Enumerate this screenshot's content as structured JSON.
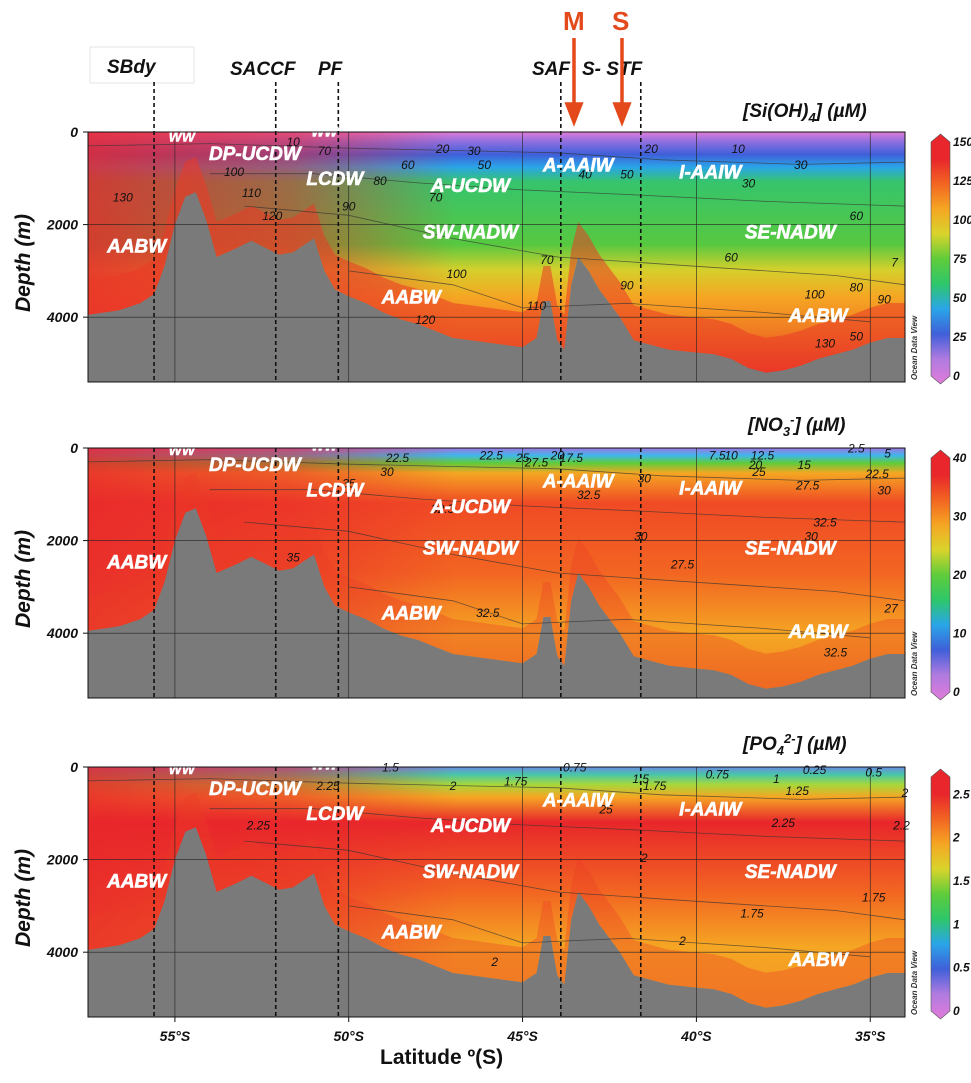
{
  "figure": {
    "front_labels": [
      {
        "text": "SBdy",
        "boxed": true
      },
      {
        "text": "SACCF",
        "boxed": false
      },
      {
        "text": "PF",
        "boxed": false
      },
      {
        "text": "SAF",
        "boxed": false
      },
      {
        "text": "S- STF",
        "boxed": false
      }
    ],
    "station_markers": [
      {
        "label": "M",
        "lat": -43.3
      },
      {
        "label": "S",
        "lat": -41.8
      }
    ],
    "front_latitudes": [
      -55.6,
      -52.1,
      -50.3,
      -43.9,
      -41.6
    ],
    "ylabel": "Depth (m)",
    "xlabel": "Latitude ºº(S)",
    "x_ticks": [
      "55°S",
      "50°S",
      "45°S",
      "40°S",
      "35°S"
    ],
    "y_ticks": [
      "0",
      "2000",
      "4000"
    ],
    "odv_credit": "Ocean Data View",
    "colors": {
      "seafloor": "#7a7a7a",
      "arrows": "#e4491c",
      "colorscale": [
        "#e07bd9",
        "#b07be0",
        "#3f5fd9",
        "#2aa5e8",
        "#2ec76a",
        "#5fcc3a",
        "#d9d42c",
        "#f5a623",
        "#f26522",
        "#e8262b",
        "#e8262b"
      ]
    }
  },
  "chart_data": [
    {
      "type": "heatmap",
      "title": "[Si(OH)4] (µM)",
      "title_parts": {
        "pre": "[Si(OH)",
        "sub": "4",
        "post": "] (µM)"
      },
      "xlabel": "Latitude º(S)",
      "ylabel": "Depth (m)",
      "xlim": [
        -57.5,
        -34
      ],
      "ylim": [
        5400,
        0
      ],
      "colorbar": {
        "min": 0,
        "max": 150,
        "ticks": [
          "0",
          "25",
          "50",
          "75",
          "100",
          "125",
          "150"
        ]
      },
      "water_masses": [
        {
          "text": "WW",
          "lat": -54.8,
          "depth": 200,
          "small": true
        },
        {
          "text": "WW",
          "lat": -50.7,
          "depth": 100,
          "small": true
        },
        {
          "text": "DP-UCDW",
          "lat": -52.7,
          "depth": 600
        },
        {
          "text": "LCDW",
          "lat": -50.4,
          "depth": 1150
        },
        {
          "text": "AABW",
          "lat": -56.1,
          "depth": 2600
        },
        {
          "text": "AABW",
          "lat": -48.2,
          "depth": 3700
        },
        {
          "text": "A-UCDW",
          "lat": -46.5,
          "depth": 1300
        },
        {
          "text": "SW-NADW",
          "lat": -46.5,
          "depth": 2300
        },
        {
          "text": "A-AAIW",
          "lat": -43.4,
          "depth": 850
        },
        {
          "text": "I-AAIW",
          "lat": -39.6,
          "depth": 1000
        },
        {
          "text": "SE-NADW",
          "lat": -37.3,
          "depth": 2300
        },
        {
          "text": "AABW",
          "lat": -36.5,
          "depth": 4100
        }
      ],
      "contour_labels": [
        {
          "text": "10",
          "lat": -51.6,
          "depth": 300
        },
        {
          "text": "70",
          "lat": -50.7,
          "depth": 500
        },
        {
          "text": "100",
          "lat": -53.3,
          "depth": 950
        },
        {
          "text": "110",
          "lat": -52.8,
          "depth": 1400
        },
        {
          "text": "120",
          "lat": -52.2,
          "depth": 1900
        },
        {
          "text": "130",
          "lat": -56.5,
          "depth": 1500
        },
        {
          "text": "60",
          "lat": -48.3,
          "depth": 800
        },
        {
          "text": "80",
          "lat": -49.1,
          "depth": 1150
        },
        {
          "text": "90",
          "lat": -50.0,
          "depth": 1700
        },
        {
          "text": "70",
          "lat": -47.5,
          "depth": 1500
        },
        {
          "text": "20",
          "lat": -47.3,
          "depth": 450
        },
        {
          "text": "30",
          "lat": -46.4,
          "depth": 500
        },
        {
          "text": "50",
          "lat": -46.1,
          "depth": 800
        },
        {
          "text": "40",
          "lat": -43.2,
          "depth": 1000
        },
        {
          "text": "50",
          "lat": -42.0,
          "depth": 1000
        },
        {
          "text": "20",
          "lat": -41.3,
          "depth": 450
        },
        {
          "text": "10",
          "lat": -38.8,
          "depth": 450
        },
        {
          "text": "30",
          "lat": -37.0,
          "depth": 800
        },
        {
          "text": "30",
          "lat": -38.5,
          "depth": 1200
        },
        {
          "text": "60",
          "lat": -35.4,
          "depth": 1900
        },
        {
          "text": "60",
          "lat": -39.0,
          "depth": 2800
        },
        {
          "text": "70",
          "lat": -44.3,
          "depth": 2850
        },
        {
          "text": "100",
          "lat": -46.9,
          "depth": 3150
        },
        {
          "text": "90",
          "lat": -42.0,
          "depth": 3400
        },
        {
          "text": "110",
          "lat": -44.6,
          "depth": 3850
        },
        {
          "text": "120",
          "lat": -47.8,
          "depth": 4150
        },
        {
          "text": "100",
          "lat": -36.6,
          "depth": 3600
        },
        {
          "text": "80",
          "lat": -35.4,
          "depth": 3450
        },
        {
          "text": "90",
          "lat": -34.6,
          "depth": 3700
        },
        {
          "text": "7",
          "lat": -34.3,
          "depth": 2900
        },
        {
          "text": "130",
          "lat": -36.3,
          "depth": 4650
        },
        {
          "text": "50",
          "lat": -35.4,
          "depth": 4500
        }
      ]
    },
    {
      "type": "heatmap",
      "title": "[NO3-] (µM)",
      "title_parts": {
        "pre": "[NO",
        "sub": "3",
        "sup": "-",
        "post": "] (µM)"
      },
      "xlabel": "Latitude º(S)",
      "ylabel": "Depth (m)",
      "xlim": [
        -57.5,
        -34
      ],
      "ylim": [
        5400,
        0
      ],
      "colorbar": {
        "min": 0,
        "max": 40,
        "ticks": [
          "0",
          "10",
          "20",
          "30",
          "40"
        ]
      },
      "water_masses": [
        {
          "text": "WW",
          "lat": -54.8,
          "depth": 150,
          "small": true
        },
        {
          "text": "WW",
          "lat": -50.7,
          "depth": 50,
          "small": true
        },
        {
          "text": "DP-UCDW",
          "lat": -52.7,
          "depth": 500
        },
        {
          "text": "LCDW",
          "lat": -50.4,
          "depth": 1050
        },
        {
          "text": "AABW",
          "lat": -56.1,
          "depth": 2600
        },
        {
          "text": "AABW",
          "lat": -48.2,
          "depth": 3700
        },
        {
          "text": "A-UCDW",
          "lat": -46.5,
          "depth": 1400
        },
        {
          "text": "SW-NADW",
          "lat": -46.5,
          "depth": 2300
        },
        {
          "text": "A-AAIW",
          "lat": -43.4,
          "depth": 850
        },
        {
          "text": "I-AAIW",
          "lat": -39.6,
          "depth": 1000
        },
        {
          "text": "SE-NADW",
          "lat": -37.3,
          "depth": 2300
        },
        {
          "text": "AABW",
          "lat": -36.5,
          "depth": 4100
        }
      ],
      "contour_labels": [
        {
          "text": "22.5",
          "lat": -48.6,
          "depth": 300
        },
        {
          "text": "30",
          "lat": -48.9,
          "depth": 600
        },
        {
          "text": "22.5",
          "lat": -45.9,
          "depth": 250
        },
        {
          "text": "25",
          "lat": -45.0,
          "depth": 300
        },
        {
          "text": "27.5",
          "lat": -44.6,
          "depth": 400
        },
        {
          "text": "20",
          "lat": -44.0,
          "depth": 250
        },
        {
          "text": "17.5",
          "lat": -43.6,
          "depth": 300
        },
        {
          "text": "35",
          "lat": -50.0,
          "depth": 850
        },
        {
          "text": "32.5",
          "lat": -47.3,
          "depth": 1400
        },
        {
          "text": "32.5",
          "lat": -43.1,
          "depth": 1100
        },
        {
          "text": "30",
          "lat": -41.5,
          "depth": 750
        },
        {
          "text": "35",
          "lat": -51.6,
          "depth": 2450
        },
        {
          "text": "30",
          "lat": -41.6,
          "depth": 2000
        },
        {
          "text": "7.5",
          "lat": -39.4,
          "depth": 250
        },
        {
          "text": "10",
          "lat": -39.0,
          "depth": 250
        },
        {
          "text": "12.5",
          "lat": -38.1,
          "depth": 250
        },
        {
          "text": "20",
          "lat": -38.3,
          "depth": 450
        },
        {
          "text": "25",
          "lat": -38.2,
          "depth": 600
        },
        {
          "text": "15",
          "lat": -36.9,
          "depth": 450
        },
        {
          "text": "2.5",
          "lat": -35.4,
          "depth": 100
        },
        {
          "text": "5",
          "lat": -34.5,
          "depth": 200
        },
        {
          "text": "22.5",
          "lat": -34.8,
          "depth": 650
        },
        {
          "text": "30",
          "lat": -34.6,
          "depth": 1000
        },
        {
          "text": "27.5",
          "lat": -36.8,
          "depth": 900
        },
        {
          "text": "32.5",
          "lat": -36.3,
          "depth": 1700
        },
        {
          "text": "30",
          "lat": -36.7,
          "depth": 2000
        },
        {
          "text": "27.5",
          "lat": -40.4,
          "depth": 2600
        },
        {
          "text": "32.5",
          "lat": -46.0,
          "depth": 3650
        },
        {
          "text": "27",
          "lat": -34.4,
          "depth": 3550
        },
        {
          "text": "32.5",
          "lat": -36.0,
          "depth": 4500
        }
      ]
    },
    {
      "type": "heatmap",
      "title": "[PO42-] (µM)",
      "title_parts": {
        "pre": "[PO",
        "sub": "4",
        "sup": "2-",
        "post": "] (µM)"
      },
      "xlabel": "Latitude º(S)",
      "ylabel": "Depth (m)",
      "xlim": [
        -57.5,
        -34
      ],
      "ylim": [
        5400,
        0
      ],
      "colorbar": {
        "min": 0,
        "max": 2.7,
        "ticks": [
          "0",
          "0.5",
          "1",
          "1.5",
          "2",
          "2.5"
        ]
      },
      "water_masses": [
        {
          "text": "WW",
          "lat": -54.8,
          "depth": 150,
          "small": true
        },
        {
          "text": "WW",
          "lat": -50.7,
          "depth": 50,
          "small": true
        },
        {
          "text": "DP-UCDW",
          "lat": -52.7,
          "depth": 600
        },
        {
          "text": "LCDW",
          "lat": -50.4,
          "depth": 1150
        },
        {
          "text": "AABW",
          "lat": -56.1,
          "depth": 2600
        },
        {
          "text": "AABW",
          "lat": -48.2,
          "depth": 3700
        },
        {
          "text": "A-UCDW",
          "lat": -46.5,
          "depth": 1400
        },
        {
          "text": "SW-NADW",
          "lat": -46.5,
          "depth": 2400
        },
        {
          "text": "A-AAIW",
          "lat": -43.4,
          "depth": 850
        },
        {
          "text": "I-AAIW",
          "lat": -39.6,
          "depth": 1050
        },
        {
          "text": "SE-NADW",
          "lat": -37.3,
          "depth": 2400
        },
        {
          "text": "AABW",
          "lat": -36.5,
          "depth": 4300
        }
      ],
      "contour_labels": [
        {
          "text": "1.5",
          "lat": -48.8,
          "depth": 100
        },
        {
          "text": "2.25",
          "lat": -50.6,
          "depth": 500
        },
        {
          "text": "2.25",
          "lat": -52.6,
          "depth": 1350
        },
        {
          "text": "2",
          "lat": -47.0,
          "depth": 500
        },
        {
          "text": "1.75",
          "lat": -45.2,
          "depth": 400
        },
        {
          "text": "0.75",
          "lat": -43.5,
          "depth": 100
        },
        {
          "text": "1.5",
          "lat": -41.6,
          "depth": 350
        },
        {
          "text": "1.75",
          "lat": -41.2,
          "depth": 500
        },
        {
          "text": "25",
          "lat": -42.6,
          "depth": 1000
        },
        {
          "text": "0.75",
          "lat": -39.4,
          "depth": 250
        },
        {
          "text": "1",
          "lat": -37.7,
          "depth": 350
        },
        {
          "text": "1.25",
          "lat": -37.1,
          "depth": 600
        },
        {
          "text": "0.25",
          "lat": -36.6,
          "depth": 150
        },
        {
          "text": "0.5",
          "lat": -34.9,
          "depth": 200
        },
        {
          "text": "2",
          "lat": -34.0,
          "depth": 650
        },
        {
          "text": "2.25",
          "lat": -37.5,
          "depth": 1300
        },
        {
          "text": "2.2",
          "lat": -34.1,
          "depth": 1350
        },
        {
          "text": "2",
          "lat": -41.5,
          "depth": 2050
        },
        {
          "text": "1.75",
          "lat": -38.4,
          "depth": 3250
        },
        {
          "text": "1.75",
          "lat": -34.9,
          "depth": 2900
        },
        {
          "text": "2",
          "lat": -40.4,
          "depth": 3850
        },
        {
          "text": "2",
          "lat": -45.8,
          "depth": 4300
        }
      ]
    }
  ]
}
